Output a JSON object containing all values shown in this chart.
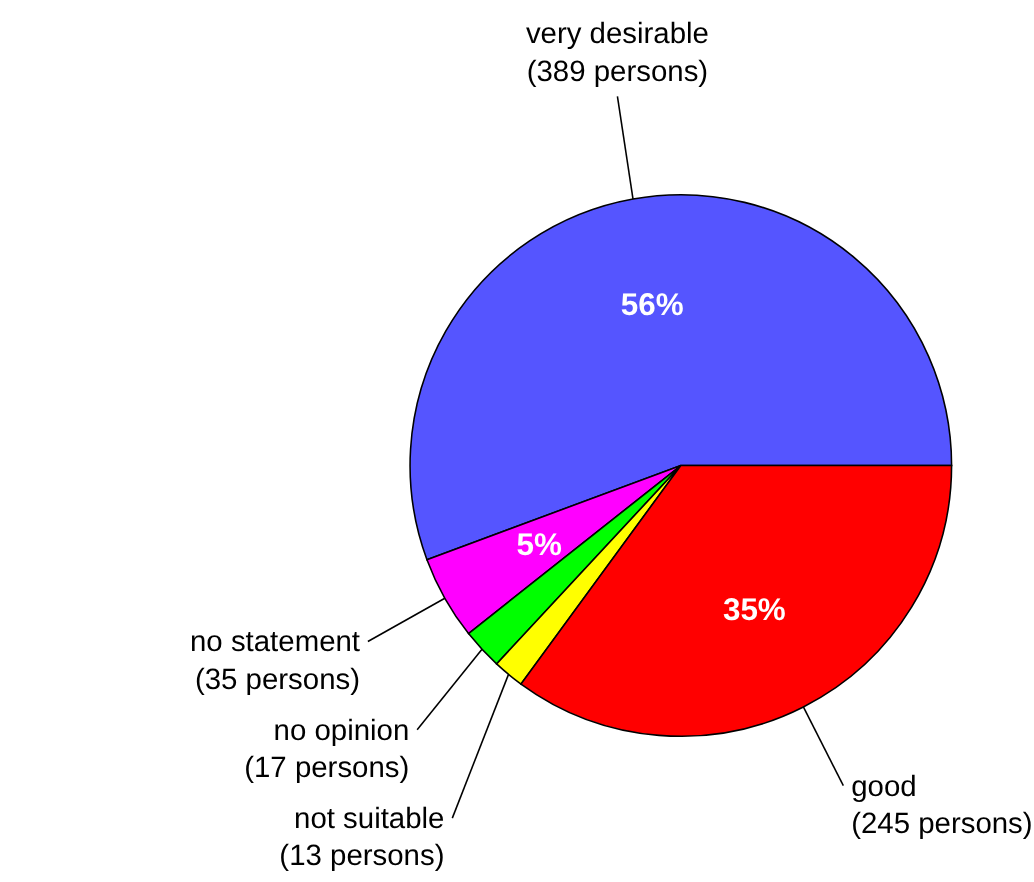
{
  "chart_data": {
    "type": "pie",
    "categories": [
      "very desirable",
      "no statement",
      "no opinion",
      "not suitable",
      "good"
    ],
    "values": [
      389,
      35,
      17,
      13,
      245
    ],
    "value_labels": [
      "(389 persons)",
      "(35 persons)",
      "(17 persons)",
      "(13 persons)",
      "(245 persons)"
    ],
    "colors": [
      "#5555ff",
      "#ff00ff",
      "#00ff00",
      "#ffff00",
      "#ff0000"
    ],
    "annotations": [
      {
        "text": "56%",
        "x": "very desirable"
      },
      {
        "text": "5%",
        "x": "no statement"
      },
      {
        "text": "35%",
        "x": "good"
      }
    ],
    "legend": false
  }
}
